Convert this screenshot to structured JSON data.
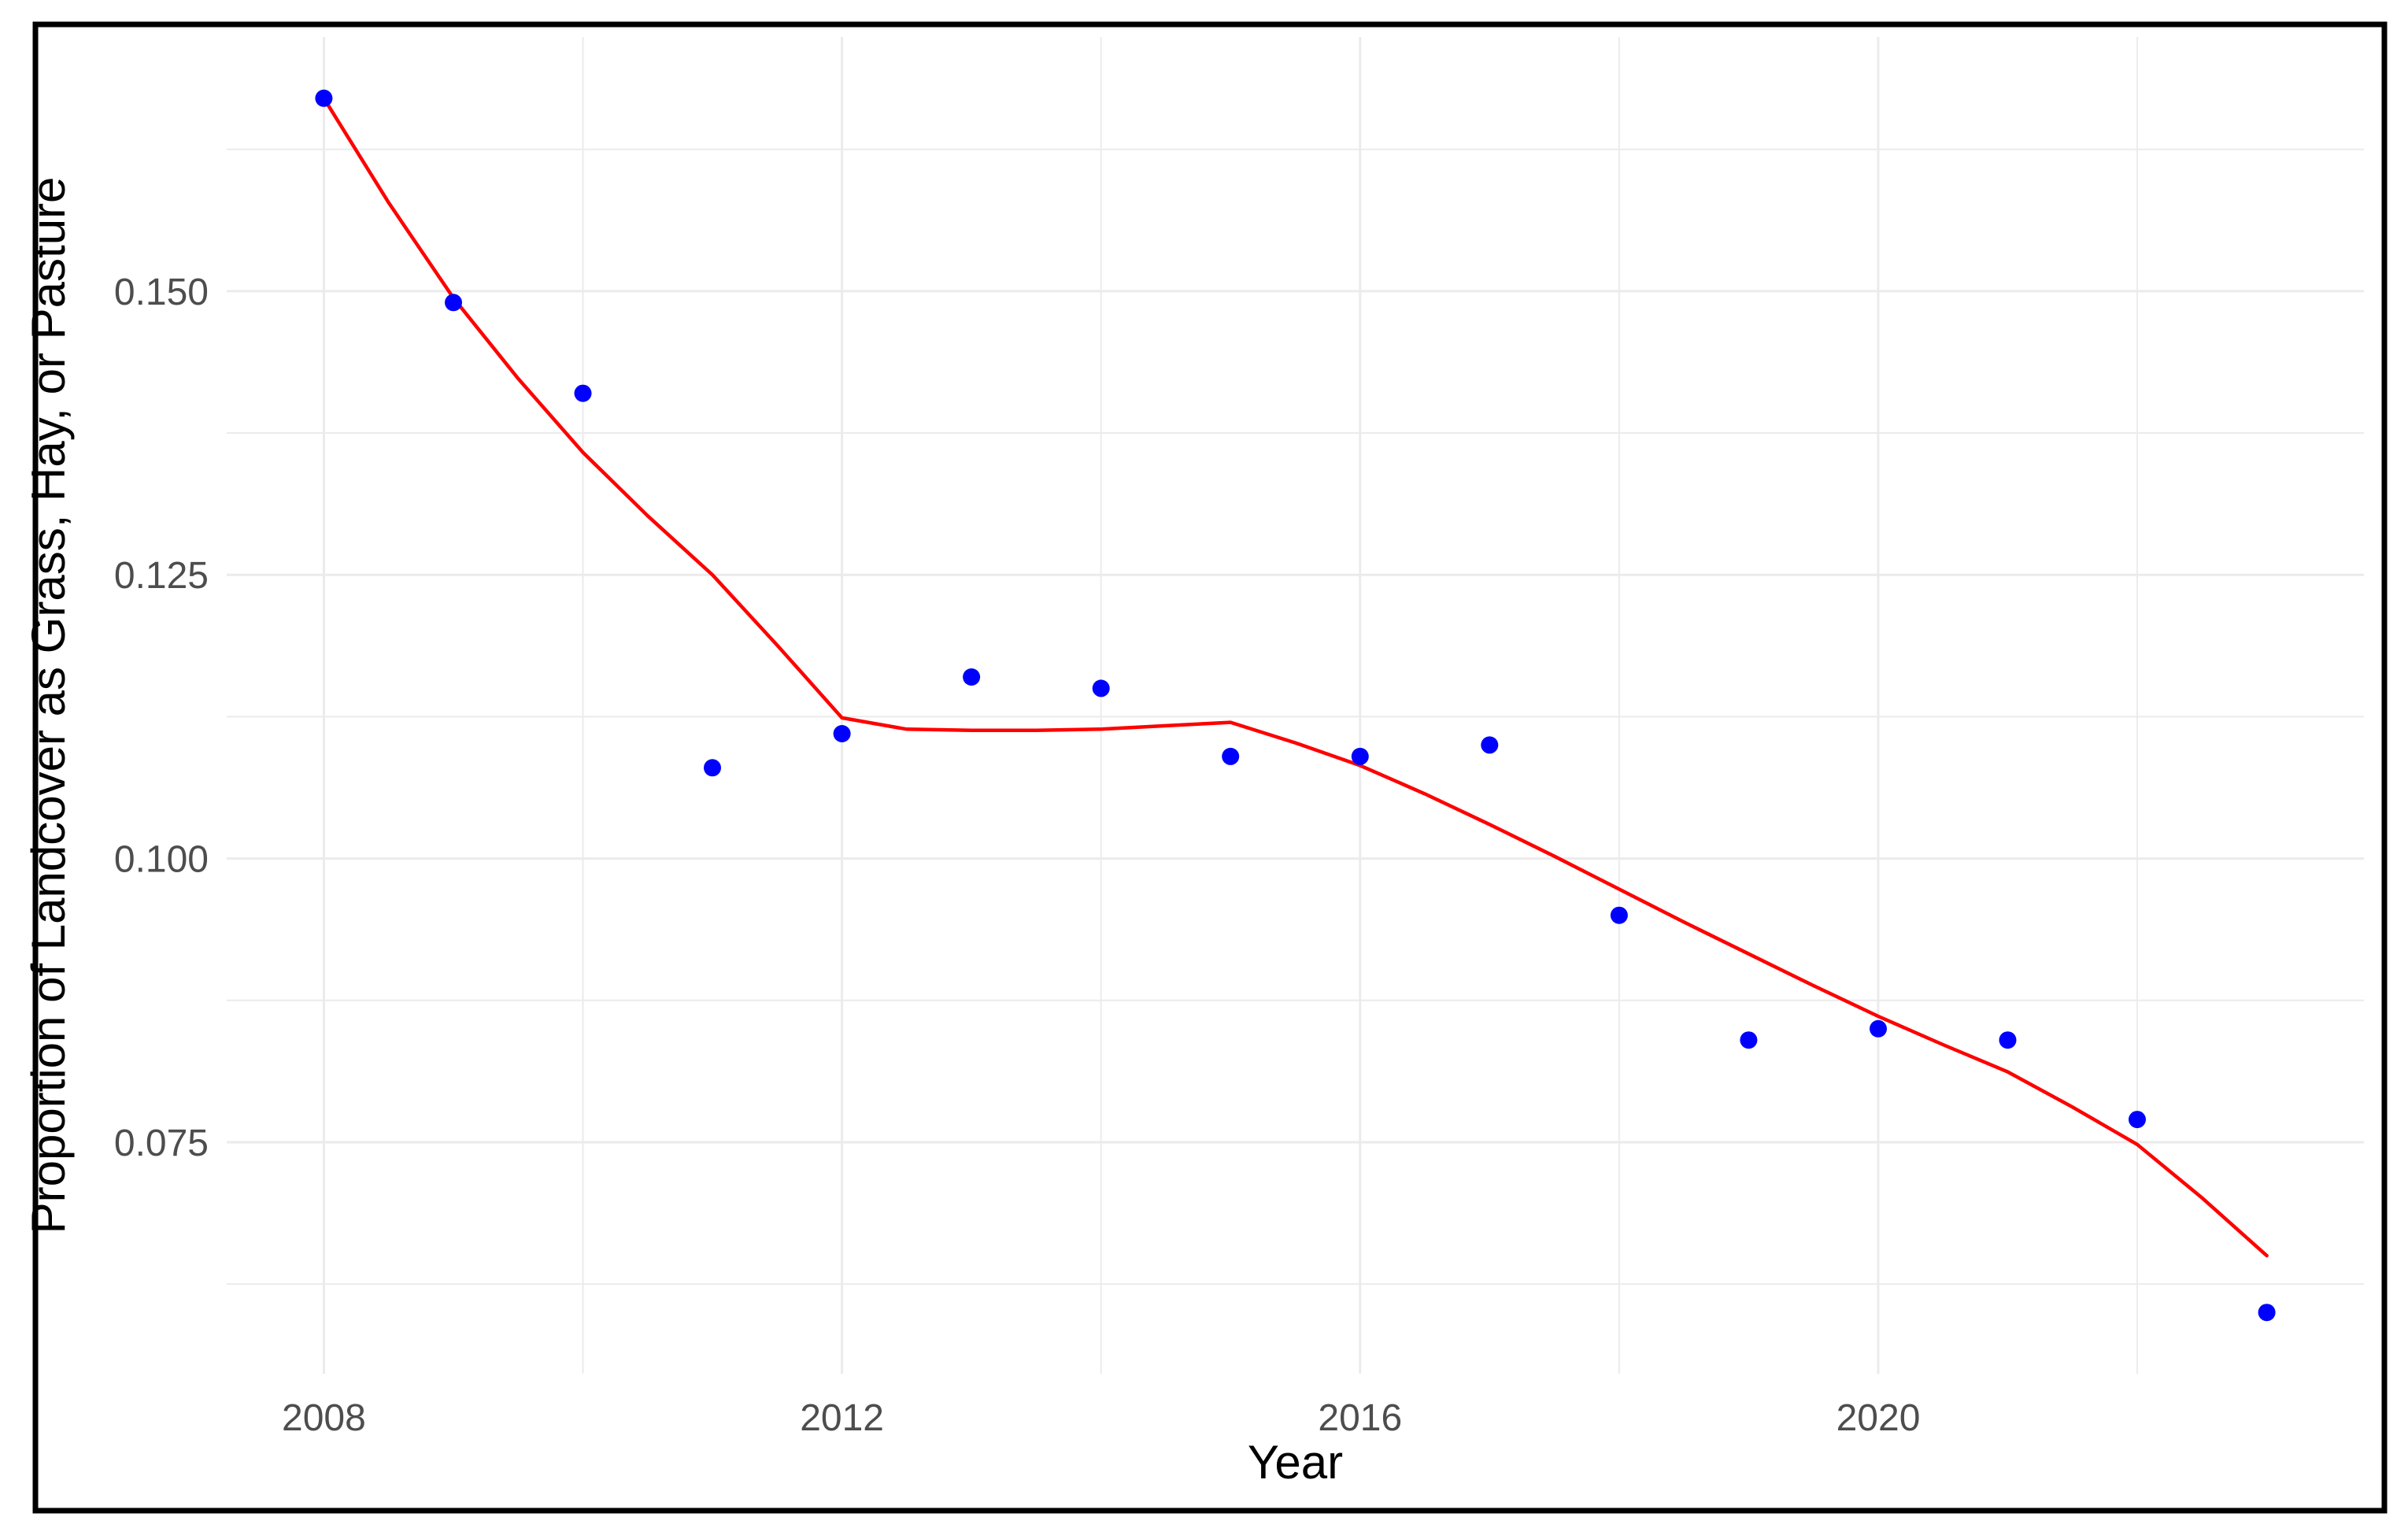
{
  "figure": {
    "background_color": "#FFFFFF",
    "border_color": "#000000",
    "panel_background": "#FFFFFF"
  },
  "chart_data": {
    "type": "scatter",
    "title": "",
    "xlabel": "Year",
    "ylabel": "Proportion of Landcover as Grass, Hay, or Pasture",
    "xlim": [
      2007.25,
      2023.75
    ],
    "ylim": [
      0.0546,
      0.1724
    ],
    "grid": "on",
    "legend": "none",
    "x_major_ticks": [
      2008,
      2012,
      2016,
      2020
    ],
    "x_tick_labels": [
      "2008",
      "2012",
      "2016",
      "2020"
    ],
    "x_minor_gridlines": [
      2010,
      2014,
      2018,
      2022
    ],
    "y_major_ticks": [
      0.075,
      0.1,
      0.125,
      0.15
    ],
    "y_tick_labels": [
      "0.075",
      "0.100",
      "0.125",
      "0.150"
    ],
    "y_minor_gridlines": [
      0.0625,
      0.0875,
      0.1125,
      0.1375,
      0.1625
    ],
    "styles": {
      "grid_color": "#EBEBEB",
      "tick_label_color": "#4D4D4D",
      "axis_title_color": "#000000",
      "point_color": "#0000FF",
      "smooth_line_color": "#FF0000"
    },
    "series": [
      {
        "name": "annual-observations",
        "type": "points",
        "color": "#0000FF",
        "x": [
          2008,
          2009,
          2010,
          2011,
          2012,
          2013,
          2014,
          2015,
          2016,
          2017,
          2018,
          2019,
          2020,
          2021,
          2022,
          2023
        ],
        "y": [
          0.167,
          0.149,
          0.141,
          0.108,
          0.111,
          0.116,
          0.115,
          0.109,
          0.109,
          0.11,
          0.095,
          0.084,
          0.085,
          0.084,
          0.077,
          0.06
        ]
      },
      {
        "name": "loess-smooth",
        "type": "line",
        "color": "#FF0000",
        "x": [
          2008,
          2008.5,
          2009,
          2009.5,
          2010,
          2010.5,
          2011,
          2011.5,
          2012,
          2012.5,
          2013,
          2013.5,
          2014,
          2014.5,
          2015,
          2015.5,
          2016,
          2016.5,
          2017,
          2017.5,
          2018,
          2018.5,
          2019,
          2019.5,
          2020,
          2020.5,
          2021,
          2021.5,
          2022,
          2022.5,
          2023
        ],
        "y": [
          0.167,
          0.1578,
          0.1494,
          0.1423,
          0.1358,
          0.1302,
          0.125,
          0.1188,
          0.1124,
          0.1114,
          0.1113,
          0.1113,
          0.1114,
          0.1117,
          0.112,
          0.1102,
          0.1082,
          0.1057,
          0.103,
          0.1002,
          0.0973,
          0.0944,
          0.0916,
          0.0888,
          0.0861,
          0.0836,
          0.0812,
          0.0781,
          0.0748,
          0.0701,
          0.065
        ]
      }
    ]
  }
}
